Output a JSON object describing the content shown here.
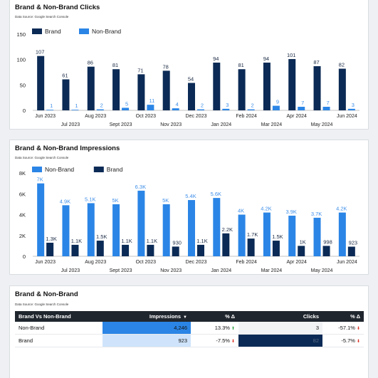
{
  "chart_data": [
    {
      "type": "bar",
      "title": "Brand & Non-Brand Clicks",
      "subtitle": "Data Source: Google Search Console",
      "categories": [
        "Jun 2023",
        "Jul 2023",
        "Aug 2023",
        "Sept 2023",
        "Oct 2023",
        "Nov 2023",
        "Dec 2023",
        "Jan 2024",
        "Feb 2024",
        "Mar 2024",
        "Apr 2024",
        "May 2024",
        "Jun 2024"
      ],
      "series": [
        {
          "name": "Brand",
          "color": "#0b2a55",
          "values": [
            107,
            61,
            86,
            81,
            71,
            78,
            54,
            94,
            81,
            94,
            101,
            87,
            82
          ],
          "labels": [
            "107",
            "61",
            "86",
            "81",
            "71",
            "78",
            "54",
            "94",
            "81",
            "94",
            "101",
            "87",
            "82"
          ]
        },
        {
          "name": "Non-Brand",
          "color": "#2b85e6",
          "values": [
            1,
            1,
            2,
            5,
            11,
            4,
            2,
            3,
            2,
            9,
            7,
            7,
            3
          ],
          "labels": [
            "1",
            "1",
            "2",
            "5",
            "11",
            "4",
            "2",
            "3",
            "2",
            "9",
            "7",
            "7",
            "3"
          ]
        }
      ],
      "ylim": [
        0,
        150
      ],
      "yticks": [
        0,
        50,
        100,
        150
      ],
      "legend": "top-left",
      "grid": false
    },
    {
      "type": "bar",
      "title": "Brand & Non-Brand Impressions",
      "subtitle": "Data Source: Google Search Console",
      "categories": [
        "Jun 2023",
        "Jul 2023",
        "Aug 2023",
        "Sept 2023",
        "Oct 2023",
        "Nov 2023",
        "Dec 2023",
        "Jan 2024",
        "Feb 2024",
        "Mar 2024",
        "Apr 2024",
        "May 2024",
        "Jun 2024"
      ],
      "series": [
        {
          "name": "Non-Brand",
          "color": "#2b85e6",
          "values": [
            7000,
            4900,
            5100,
            5000,
            6300,
            5000,
            5400,
            5600,
            4000,
            4200,
            3900,
            3700,
            4200
          ],
          "labels": [
            "7K",
            "4.9K",
            "5.1K",
            "5K",
            "6.3K",
            "5K",
            "5.4K",
            "5.6K",
            "4K",
            "4.2K",
            "3.9K",
            "3.7K",
            "4.2K"
          ]
        },
        {
          "name": "Brand",
          "color": "#0b2a55",
          "values": [
            1300,
            1100,
            1500,
            1100,
            1100,
            930,
            1100,
            2200,
            1700,
            1500,
            1000,
            998,
            923
          ],
          "labels": [
            "1.3K",
            "1.1K",
            "1.5K",
            "1.1K",
            "1.1K",
            "930",
            "1.1K",
            "2.2K",
            "1.7K",
            "1.5K",
            "1K",
            "998",
            "923"
          ]
        }
      ],
      "ylim": [
        0,
        8000
      ],
      "yticks": [
        0,
        2000,
        4000,
        6000,
        8000
      ],
      "ytick_labels": [
        "0",
        "2K",
        "4K",
        "6K",
        "8K"
      ],
      "legend": "top-left",
      "grid": false
    },
    {
      "type": "table",
      "title": "Brand & Non-Brand",
      "subtitle": "Data Source: Google Search Console",
      "columns": [
        "Brand Vs Non-Brand",
        "Impressions",
        "% Δ",
        "Clicks",
        "% Δ"
      ],
      "sort_indicator": "▼",
      "rows": [
        {
          "label": "Non-Brand",
          "impressions": "4,246",
          "impressions_value": 4246,
          "imp_delta": "13.3%",
          "imp_delta_dir": "up",
          "clicks": "3",
          "clicks_value": 3,
          "clicks_delta": "-57.1%",
          "clicks_delta_dir": "down"
        },
        {
          "label": "Brand",
          "impressions": "923",
          "impressions_value": 923,
          "imp_delta": "-7.5%",
          "imp_delta_dir": "down",
          "clicks": "82",
          "clicks_value": 82,
          "clicks_delta": "-5.7%",
          "clicks_delta_dir": "down"
        }
      ],
      "colors": {
        "header": "#20262e",
        "bar_max": "#2b85e6",
        "bar_min": "#cfe4fb",
        "clicks_max": "#0b2a55",
        "clicks_min": "#f1f3f5"
      }
    }
  ]
}
